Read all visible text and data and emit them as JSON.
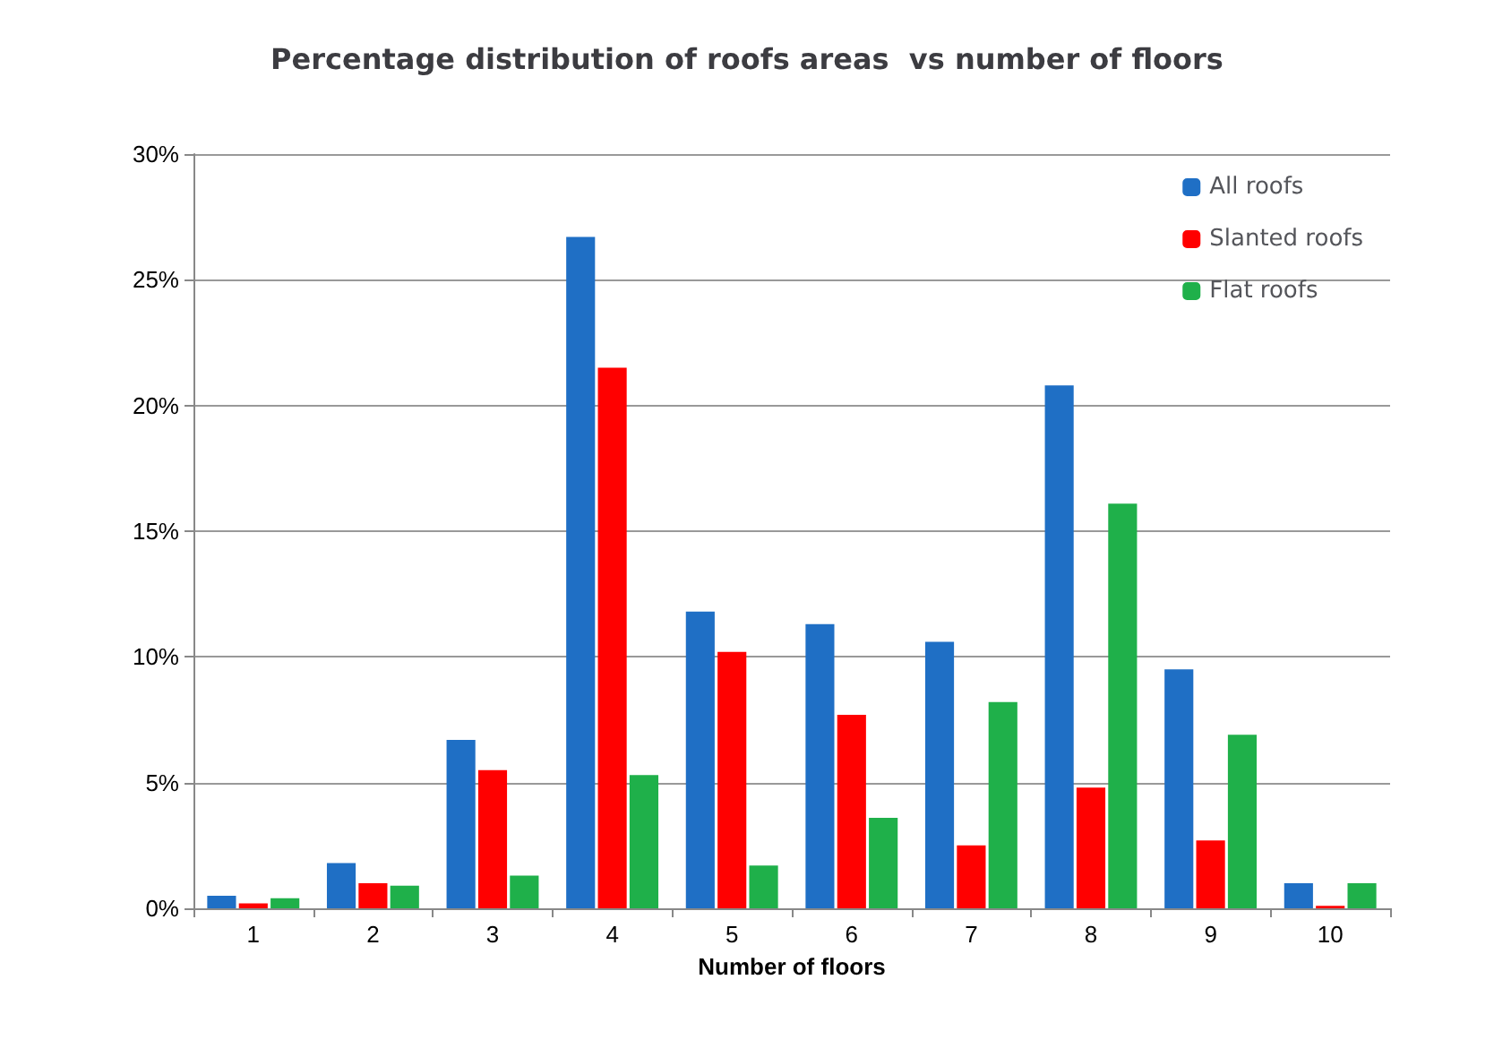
{
  "chart_data": {
    "type": "bar",
    "title": "Percentage distribution of roofs areas  vs number of floors",
    "xlabel": "Number of floors",
    "categories": [
      "1",
      "2",
      "3",
      "4",
      "5",
      "6",
      "7",
      "8",
      "9",
      "10"
    ],
    "series": [
      {
        "name": "All roofs",
        "color": "#1f6fc5",
        "values": [
          0.5,
          1.8,
          6.7,
          26.7,
          11.8,
          11.3,
          10.6,
          20.8,
          9.5,
          1.0
        ]
      },
      {
        "name": "Slanted roofs",
        "color": "#ff0000",
        "values": [
          0.2,
          1.0,
          5.5,
          21.5,
          10.2,
          7.7,
          2.5,
          4.8,
          2.7,
          0.1
        ]
      },
      {
        "name": "Flat roofs",
        "color": "#1fb04a",
        "values": [
          0.4,
          0.9,
          1.3,
          5.3,
          1.7,
          3.6,
          8.2,
          16.1,
          6.9,
          1.0
        ]
      }
    ],
    "ylim": [
      0,
      30
    ],
    "yticks": [
      {
        "value": 0,
        "label": "0%"
      },
      {
        "value": 5,
        "label": "5%"
      },
      {
        "value": 10,
        "label": "10%"
      },
      {
        "value": 15,
        "label": "15%"
      },
      {
        "value": 20,
        "label": "20%"
      },
      {
        "value": 25,
        "label": "25%"
      },
      {
        "value": 30,
        "label": "30%"
      }
    ],
    "grid": "y",
    "legend": "top right"
  }
}
